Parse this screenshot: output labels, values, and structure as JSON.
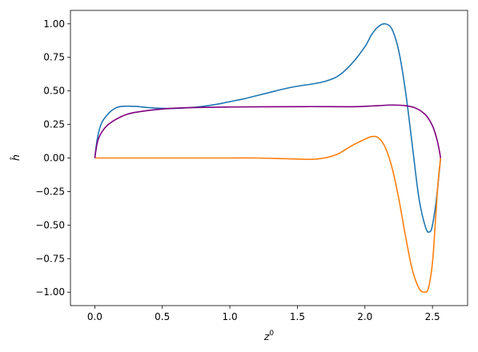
{
  "chart_data": {
    "type": "line",
    "title": "",
    "xlabel": "z",
    "xlabel_sup": "0",
    "ylabel": "ĥ",
    "xlim": [
      -0.18,
      2.76
    ],
    "ylim": [
      -1.1,
      1.1
    ],
    "xticks": [
      "0.0",
      "0.5",
      "1.0",
      "1.5",
      "2.0",
      "2.5"
    ],
    "xtick_values": [
      0.0,
      0.5,
      1.0,
      1.5,
      2.0,
      2.5
    ],
    "yticks": [
      "1.00",
      "0.75",
      "0.50",
      "0.25",
      "0.00",
      "−0.25",
      "−0.50",
      "−0.75",
      "−1.00"
    ],
    "ytick_values": [
      1.0,
      0.75,
      0.5,
      0.25,
      0.0,
      -0.25,
      -0.5,
      -0.75,
      -1.0
    ],
    "grid": false,
    "legend": "none",
    "series": [
      {
        "color": "#1f77b4",
        "x": [
          0.0,
          0.02,
          0.05,
          0.1,
          0.15,
          0.2,
          0.3,
          0.4,
          0.5,
          0.6,
          0.7,
          0.8,
          0.9,
          1.0,
          1.1,
          1.2,
          1.3,
          1.4,
          1.5,
          1.6,
          1.7,
          1.8,
          1.9,
          2.0,
          2.05,
          2.1,
          2.15,
          2.2,
          2.25,
          2.3,
          2.35,
          2.4,
          2.45,
          2.48,
          2.5,
          2.53,
          2.56
        ],
        "y": [
          0.0,
          0.15,
          0.26,
          0.33,
          0.37,
          0.385,
          0.385,
          0.375,
          0.37,
          0.37,
          0.375,
          0.385,
          0.4,
          0.42,
          0.44,
          0.465,
          0.49,
          0.515,
          0.535,
          0.55,
          0.57,
          0.61,
          0.7,
          0.83,
          0.92,
          0.98,
          1.0,
          0.96,
          0.8,
          0.5,
          0.1,
          -0.3,
          -0.52,
          -0.55,
          -0.5,
          -0.3,
          0.0
        ]
      },
      {
        "color": "#ff7f0e",
        "x": [
          0.0,
          0.2,
          0.5,
          1.0,
          1.2,
          1.4,
          1.6,
          1.7,
          1.8,
          1.9,
          2.0,
          2.05,
          2.1,
          2.15,
          2.2,
          2.25,
          2.3,
          2.35,
          2.4,
          2.44,
          2.47,
          2.5,
          2.52,
          2.54,
          2.56
        ],
        "y": [
          0.0,
          0.0,
          0.0,
          0.0,
          0.0,
          -0.005,
          -0.01,
          0.0,
          0.03,
          0.09,
          0.14,
          0.16,
          0.15,
          0.08,
          -0.07,
          -0.3,
          -0.58,
          -0.83,
          -0.97,
          -1.0,
          -0.97,
          -0.78,
          -0.5,
          -0.2,
          0.0
        ]
      },
      {
        "color": "#800080",
        "x": [
          0.0,
          0.02,
          0.05,
          0.1,
          0.2,
          0.3,
          0.5,
          0.7,
          1.0,
          1.3,
          1.6,
          1.9,
          2.0,
          2.1,
          2.2,
          2.3,
          2.38,
          2.45,
          2.5,
          2.53,
          2.55,
          2.56
        ],
        "y": [
          0.0,
          0.12,
          0.19,
          0.25,
          0.31,
          0.34,
          0.365,
          0.375,
          0.38,
          0.382,
          0.383,
          0.382,
          0.385,
          0.39,
          0.395,
          0.39,
          0.37,
          0.32,
          0.24,
          0.15,
          0.06,
          0.0
        ]
      }
    ]
  }
}
